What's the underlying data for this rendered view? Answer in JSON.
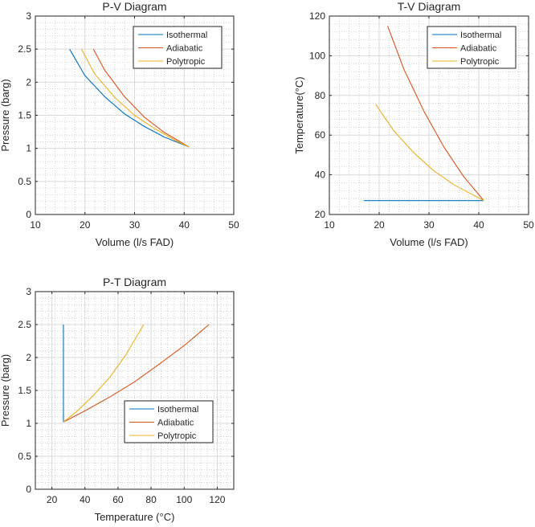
{
  "colors": {
    "isothermal": "#0072BD",
    "adiabatic": "#D95319",
    "polytropic": "#EDB120",
    "axis": "#262626",
    "grid_major": "#d9d9d9",
    "grid_minor": "#c8c8c8"
  },
  "chart_data": [
    {
      "id": "pv",
      "type": "line",
      "title": "P-V Diagram",
      "xlabel": "Volume (l/s FAD)",
      "ylabel": "Pressure (barg)",
      "xlim": [
        10,
        50
      ],
      "ylim": [
        0,
        3
      ],
      "xticks": [
        10,
        20,
        30,
        40,
        50
      ],
      "yticks": [
        0,
        0.5,
        1,
        1.5,
        2,
        2.5,
        3
      ],
      "xtick_labels": [
        "10",
        "20",
        "30",
        "40",
        "50"
      ],
      "ytick_labels": [
        "0",
        "0.5",
        "1",
        "1.5",
        "2",
        "2.5",
        "3"
      ],
      "grid": "major and minor",
      "legend_position": "top-right",
      "series": [
        {
          "name": "Isothermal",
          "color_key": "isothermal",
          "x": [
            16.9,
            20,
            24,
            28,
            32,
            36,
            41
          ],
          "y": [
            2.5,
            2.1,
            1.78,
            1.52,
            1.33,
            1.17,
            1.02
          ]
        },
        {
          "name": "Adiabatic",
          "color_key": "adiabatic",
          "x": [
            21.7,
            24,
            28,
            32,
            36,
            41
          ],
          "y": [
            2.5,
            2.18,
            1.78,
            1.47,
            1.24,
            1.02
          ]
        },
        {
          "name": "Polytropic",
          "color_key": "polytropic",
          "x": [
            19.3,
            22,
            26,
            30,
            34,
            38,
            41
          ],
          "y": [
            2.5,
            2.12,
            1.77,
            1.5,
            1.3,
            1.13,
            1.02
          ]
        }
      ]
    },
    {
      "id": "tv",
      "type": "line",
      "title": "T-V Diagram",
      "xlabel": "Volume (l/s FAD)",
      "ylabel": "Temperature(°C)",
      "xlim": [
        10,
        50
      ],
      "ylim": [
        20,
        120
      ],
      "xticks": [
        10,
        20,
        30,
        40,
        50
      ],
      "yticks": [
        20,
        40,
        60,
        80,
        100,
        120
      ],
      "xtick_labels": [
        "10",
        "20",
        "30",
        "40",
        "50"
      ],
      "ytick_labels": [
        "20",
        "40",
        "60",
        "80",
        "100",
        "120"
      ],
      "grid": "major and minor",
      "legend_position": "top-right",
      "series": [
        {
          "name": "Isothermal",
          "color_key": "isothermal",
          "x": [
            16.9,
            41
          ],
          "y": [
            27,
            27
          ]
        },
        {
          "name": "Adiabatic",
          "color_key": "adiabatic",
          "x": [
            21.7,
            25,
            29,
            33,
            37,
            41
          ],
          "y": [
            115,
            93,
            72,
            54,
            39,
            27
          ]
        },
        {
          "name": "Polytropic",
          "color_key": "polytropic",
          "x": [
            19.3,
            23,
            27,
            31,
            35,
            41
          ],
          "y": [
            75.5,
            62,
            51,
            42,
            35,
            27
          ]
        }
      ]
    },
    {
      "id": "pt",
      "type": "line",
      "title": "P-T Diagram",
      "xlabel": "Temperature (°C)",
      "ylabel": "Pressure (barg)",
      "xlim": [
        10,
        130
      ],
      "ylim": [
        0,
        3
      ],
      "xticks": [
        20,
        40,
        60,
        80,
        100,
        120
      ],
      "yticks": [
        0,
        0.5,
        1,
        1.5,
        2,
        2.5,
        3
      ],
      "xtick_labels": [
        "20",
        "40",
        "60",
        "80",
        "100",
        "120"
      ],
      "ytick_labels": [
        "0",
        "0.5",
        "1",
        "1.5",
        "2",
        "2.5",
        "3"
      ],
      "grid": "major and minor",
      "legend_position": "bottom-right",
      "series": [
        {
          "name": "Isothermal",
          "color_key": "isothermal",
          "x": [
            27,
            27
          ],
          "y": [
            1.02,
            2.5
          ]
        },
        {
          "name": "Adiabatic",
          "color_key": "adiabatic",
          "x": [
            27,
            40,
            55,
            70,
            85,
            100,
            115
          ],
          "y": [
            1.02,
            1.19,
            1.4,
            1.63,
            1.9,
            2.18,
            2.5
          ]
        },
        {
          "name": "Polytropic",
          "color_key": "polytropic",
          "x": [
            27,
            35,
            45,
            55,
            65,
            75.5
          ],
          "y": [
            1.02,
            1.18,
            1.42,
            1.7,
            2.05,
            2.5
          ]
        }
      ]
    }
  ]
}
